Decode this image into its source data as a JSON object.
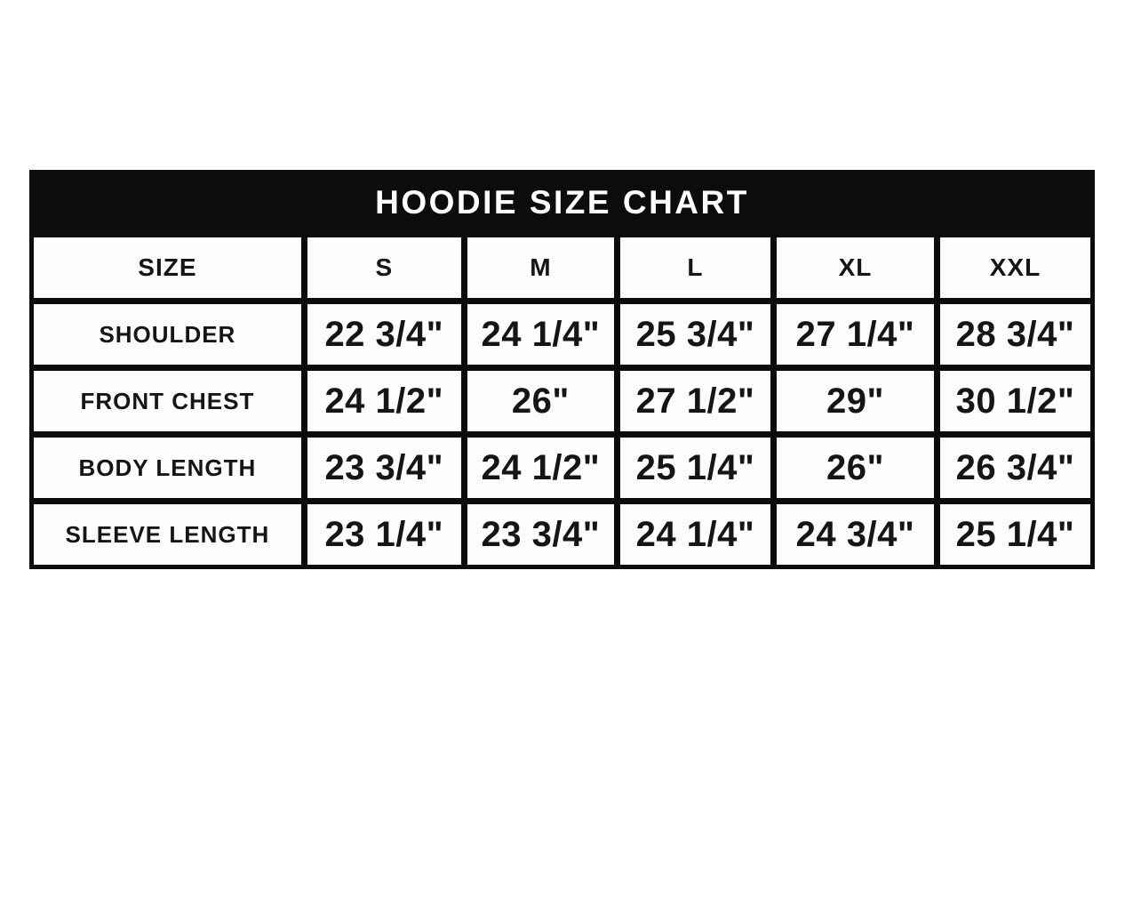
{
  "title": "HOODIE SIZE CHART",
  "colors": {
    "page_bg": "#ffffff",
    "table_bg": "#0c0c0c",
    "cell_bg": "#fcfcfc",
    "text": "#151515",
    "title_text": "#ffffff"
  },
  "table": {
    "columns": [
      "SIZE",
      "S",
      "M",
      "L",
      "XL",
      "XXL"
    ],
    "rows": [
      {
        "label": "SHOULDER",
        "values": [
          "22 3/4\"",
          "24 1/4\"",
          "25 3/4\"",
          "27 1/4\"",
          "28 3/4\""
        ]
      },
      {
        "label": "FRONT CHEST",
        "values": [
          "24 1/2\"",
          "26\"",
          "27 1/2\"",
          "29\"",
          "30 1/2\""
        ]
      },
      {
        "label": "BODY LENGTH",
        "values": [
          "23 3/4\"",
          "24 1/2\"",
          "25 1/4\"",
          "26\"",
          "26 3/4\""
        ]
      },
      {
        "label": "SLEEVE LENGTH",
        "values": [
          "23 1/4\"",
          "23 3/4\"",
          "24 1/4\"",
          "24 3/4\"",
          "25 1/4\""
        ]
      }
    ]
  },
  "chart_data": {
    "type": "table",
    "title": "HOODIE SIZE CHART",
    "columns": [
      "SIZE",
      "S",
      "M",
      "L",
      "XL",
      "XXL"
    ],
    "rows": [
      [
        "SHOULDER",
        "22 3/4\"",
        "24 1/4\"",
        "25 3/4\"",
        "27 1/4\"",
        "28 3/4\""
      ],
      [
        "FRONT CHEST",
        "24 1/2\"",
        "26\"",
        "27 1/2\"",
        "29\"",
        "30 1/2\""
      ],
      [
        "BODY LENGTH",
        "23 3/4\"",
        "24 1/2\"",
        "25 1/4\"",
        "26\"",
        "26 3/4\""
      ],
      [
        "SLEEVE LENGTH",
        "23 1/4\"",
        "23 3/4\"",
        "24 1/4\"",
        "24 3/4\"",
        "25 1/4\""
      ]
    ],
    "units": "inches",
    "layout": "header row of sizes across top, measurement names down left column, black title banner"
  }
}
